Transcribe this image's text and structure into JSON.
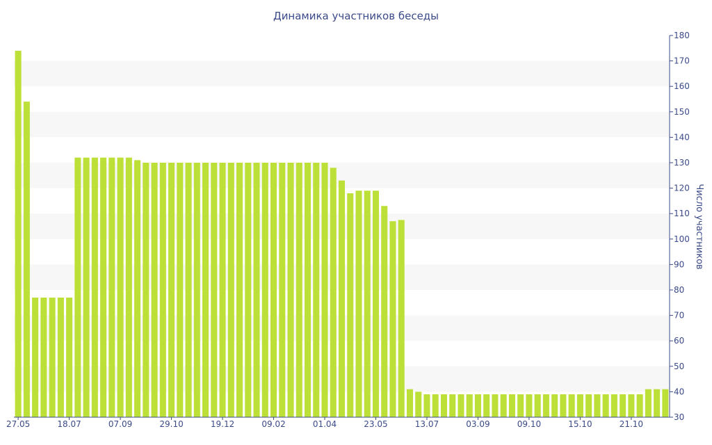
{
  "chart_data": {
    "type": "bar",
    "title": "Динамика участников беседы",
    "ylabel": "Число участников",
    "xlabel": "",
    "ylim": [
      30,
      180
    ],
    "y_ticks": [
      30,
      40,
      50,
      60,
      70,
      80,
      90,
      100,
      110,
      120,
      130,
      140,
      150,
      160,
      170,
      180
    ],
    "y_axis_side": "right",
    "grid": "alternating horizontal bands",
    "legend": "none",
    "x_tick_labels": [
      "27.05",
      "18.07",
      "07.09",
      "29.10",
      "19.12",
      "09.02",
      "01.04",
      "23.05",
      "13.07",
      "03.09",
      "09.10",
      "15.10",
      "21.10"
    ],
    "values": [
      174,
      154,
      77,
      77,
      77,
      77,
      77,
      132,
      132,
      132,
      132,
      132,
      132,
      132,
      131,
      130,
      130,
      130,
      130,
      130,
      130,
      130,
      130,
      130,
      130,
      130,
      130,
      130,
      130,
      130,
      130,
      130,
      130,
      130,
      130,
      130,
      130,
      128,
      123,
      118,
      119,
      119,
      119,
      113,
      107,
      107.5,
      41,
      40,
      39,
      39,
      39,
      39,
      39,
      39,
      39,
      39,
      39,
      39,
      39,
      39,
      39,
      39,
      39,
      39,
      39,
      39,
      39,
      39,
      39,
      39,
      39,
      39,
      39,
      39,
      41,
      41,
      41
    ],
    "colors": {
      "bar": "#bde038",
      "band": "#f7f7f7",
      "text": "#3b4a8a",
      "axis": "#3b4a8a"
    }
  }
}
